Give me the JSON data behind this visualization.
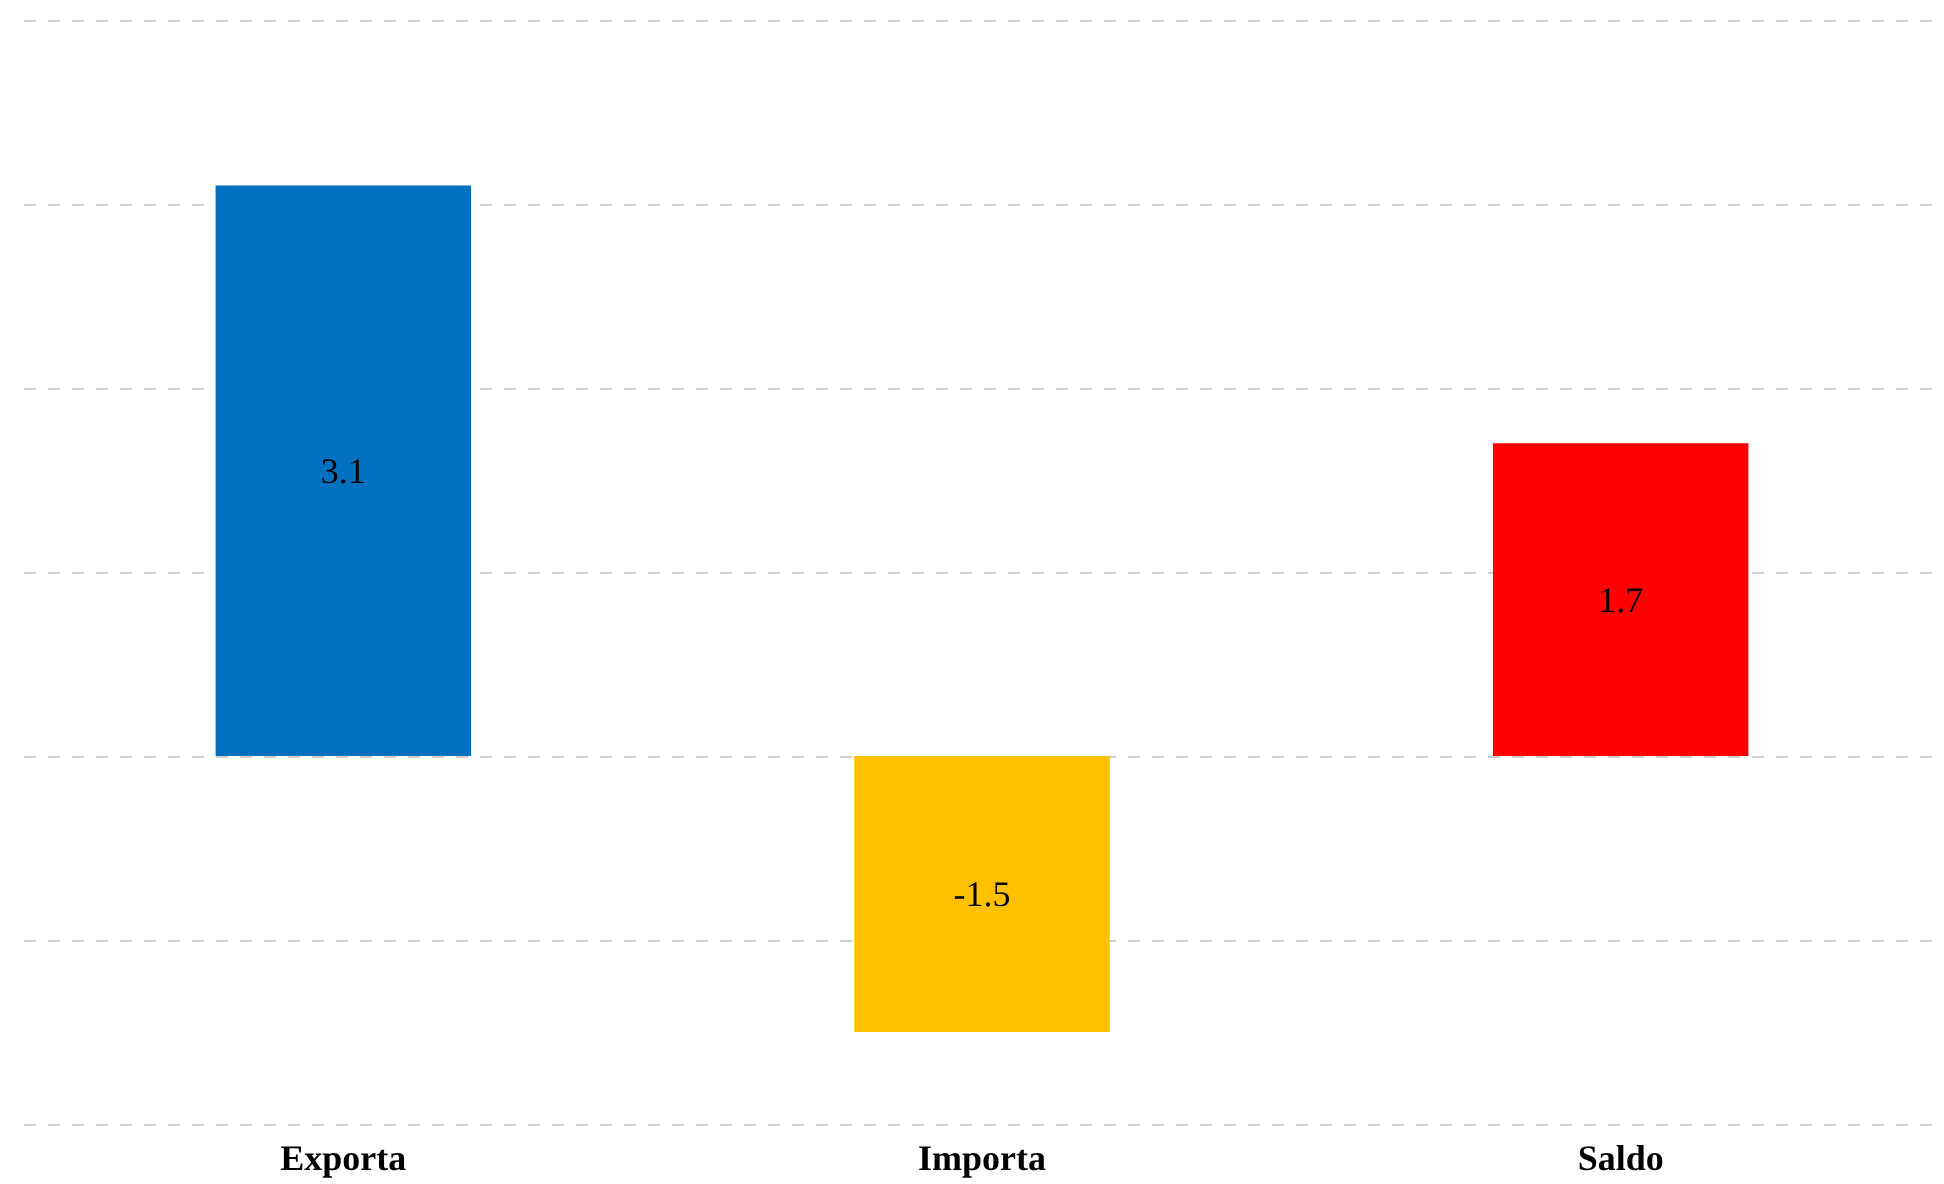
{
  "chart_data": {
    "type": "bar",
    "categories": [
      "Exporta",
      "Importa",
      "Saldo"
    ],
    "values": [
      3.1,
      -1.5,
      1.7
    ],
    "colors": [
      "#0070c0",
      "#ffc000",
      "#ff0000"
    ],
    "ylim": [
      -2,
      4
    ],
    "yticks": [
      {
        "value": -2,
        "label": null
      },
      {
        "value": -1,
        "label": null
      },
      {
        "value": 0,
        "label": null
      },
      {
        "value": 1,
        "label": null
      },
      {
        "value": 2,
        "label": null
      },
      {
        "value": 3,
        "label": null
      },
      {
        "value": 4,
        "label": null
      }
    ],
    "tick_labels": "x",
    "grid": "y",
    "line_style": "dashed",
    "data_labels": true
  }
}
